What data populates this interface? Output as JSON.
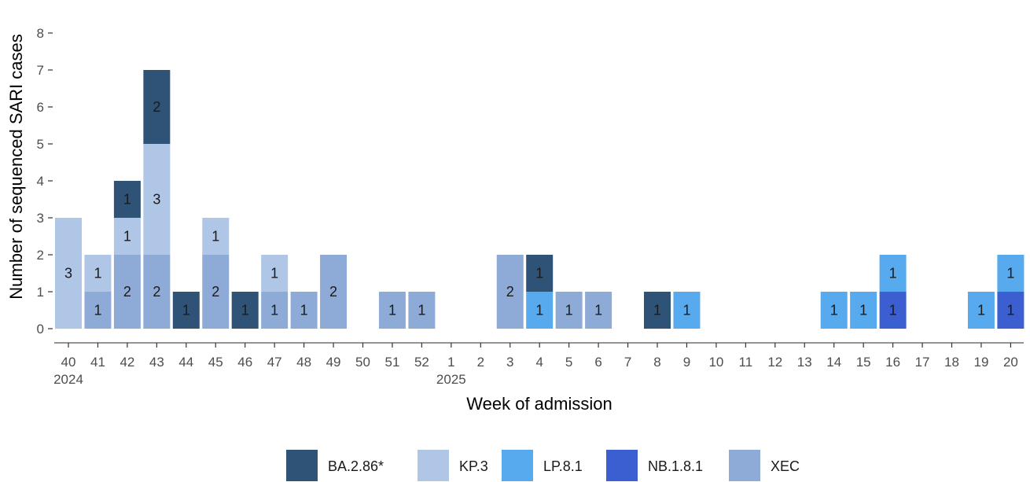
{
  "chart_data": {
    "type": "bar",
    "stacked": true,
    "xlabel": "Week of admission",
    "ylabel": "Number of sequenced SARI cases",
    "ylim": [
      0,
      8
    ],
    "yticks": [
      0,
      1,
      2,
      3,
      4,
      5,
      6,
      7,
      8
    ],
    "grid": false,
    "legend_position": "bottom",
    "categories": [
      "40",
      "41",
      "42",
      "43",
      "44",
      "45",
      "46",
      "47",
      "48",
      "49",
      "50",
      "51",
      "52",
      "1",
      "2",
      "3",
      "4",
      "5",
      "6",
      "7",
      "8",
      "9",
      "10",
      "11",
      "12",
      "13",
      "14",
      "15",
      "16",
      "17",
      "18",
      "19",
      "20"
    ],
    "year_labels": [
      {
        "category_index": 0,
        "text": "2024"
      },
      {
        "category_index": 13,
        "text": "2025"
      }
    ],
    "series_order_bottom_to_top": [
      "XEC",
      "NB.1.8.1",
      "LP.8.1",
      "KP.3",
      "BA.2.86*"
    ],
    "series": [
      {
        "name": "BA.2.86*",
        "color": "#2f5277",
        "values": [
          0,
          0,
          1,
          2,
          1,
          0,
          1,
          0,
          0,
          0,
          0,
          0,
          0,
          0,
          0,
          0,
          1,
          0,
          0,
          0,
          1,
          0,
          0,
          0,
          0,
          0,
          0,
          0,
          0,
          0,
          0,
          0,
          0
        ]
      },
      {
        "name": "KP.3",
        "color": "#afc6e6",
        "values": [
          3,
          1,
          1,
          3,
          0,
          1,
          0,
          1,
          0,
          0,
          0,
          0,
          0,
          0,
          0,
          0,
          0,
          0,
          0,
          0,
          0,
          0,
          0,
          0,
          0,
          0,
          0,
          0,
          0,
          0,
          0,
          0,
          0
        ]
      },
      {
        "name": "LP.8.1",
        "color": "#56aaed",
        "values": [
          0,
          0,
          0,
          0,
          0,
          0,
          0,
          0,
          0,
          0,
          0,
          0,
          0,
          0,
          0,
          0,
          1,
          0,
          0,
          0,
          0,
          1,
          0,
          0,
          0,
          0,
          1,
          1,
          1,
          0,
          0,
          1,
          1
        ]
      },
      {
        "name": "NB.1.8.1",
        "color": "#3b5fd0",
        "values": [
          0,
          0,
          0,
          0,
          0,
          0,
          0,
          0,
          0,
          0,
          0,
          0,
          0,
          0,
          0,
          0,
          0,
          0,
          0,
          0,
          0,
          0,
          0,
          0,
          0,
          0,
          0,
          0,
          1,
          0,
          0,
          0,
          1
        ]
      },
      {
        "name": "XEC",
        "color": "#8eabd8",
        "values": [
          0,
          1,
          2,
          2,
          0,
          2,
          0,
          1,
          1,
          2,
          0,
          1,
          1,
          0,
          0,
          2,
          0,
          1,
          1,
          0,
          0,
          0,
          0,
          0,
          0,
          0,
          0,
          0,
          0,
          0,
          0,
          0,
          0
        ]
      }
    ],
    "legend": [
      "BA.2.86*",
      "KP.3",
      "LP.8.1",
      "NB.1.8.1",
      "XEC"
    ]
  }
}
